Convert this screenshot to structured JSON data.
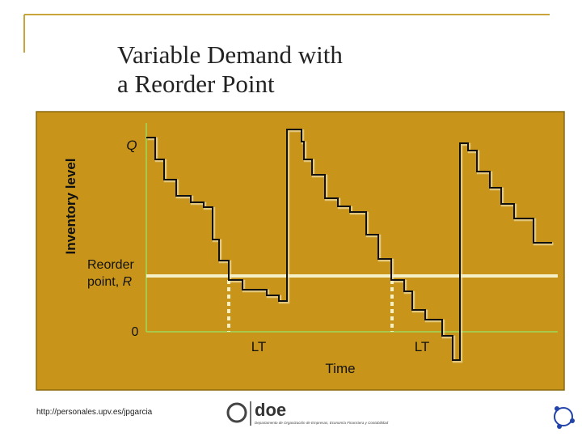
{
  "slide": {
    "title": [
      "Variable Demand with",
      "a Reorder Point"
    ],
    "diagram": {
      "y_axis_label": "Inventory level",
      "q_label": "Q",
      "reorder_label": [
        "Reorder",
        "point,"
      ],
      "reorder_symbol": "R",
      "zero_label": "0",
      "lead_time_labels": [
        "LT",
        "LT"
      ],
      "x_axis_label": "Time"
    },
    "footer": {
      "url": "http://personales.upv.es/jpgarcia",
      "logo": "doe",
      "department": "Departamento de Organización de Empresas, Economía Financiera y Contabilidad"
    }
  }
}
